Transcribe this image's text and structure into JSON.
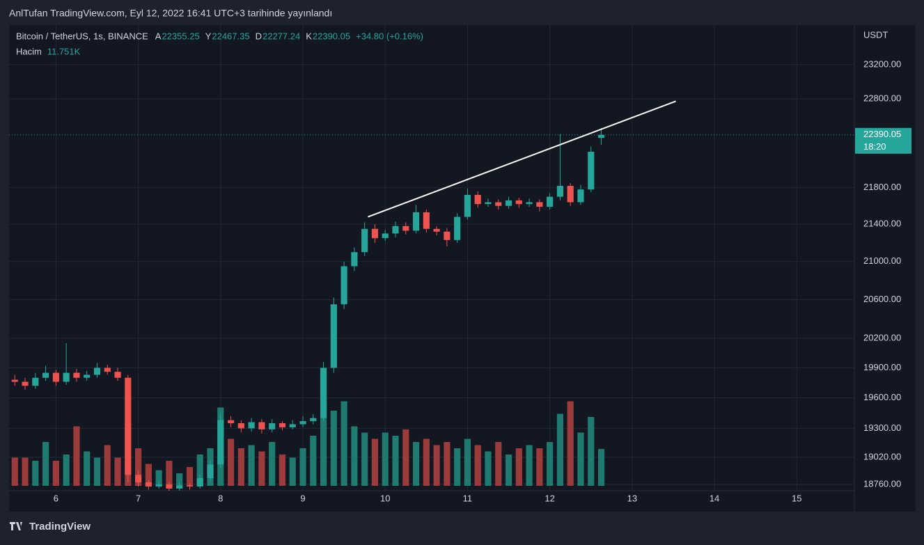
{
  "header": {
    "published": "AnlTufan TradingView.com, Eyl 12, 2022 16:41 UTC+3 tarihinde yayınlandı",
    "symbol": "Bitcoin / TetherUS, 1s, BINANCE",
    "open_label": "A",
    "high_label": "Y",
    "low_label": "D",
    "close_label": "K",
    "change": "+34.80 (+0.16%)",
    "volume_name": "Hacim",
    "countdown": "18:20"
  },
  "footer": {
    "logo": "TradingView"
  },
  "chart_data": {
    "type": "candlestick",
    "y_unit": "USDT",
    "log_scale": true,
    "grid": true,
    "up_color": "#26a69a",
    "down_color": "#ef5350",
    "volume_up_color": "#1f7a70",
    "volume_down_color": "#9c3b3b",
    "xlim": [
      5.43,
      15.7
    ],
    "xticks": [
      6,
      7,
      8,
      9,
      10,
      11,
      12,
      13,
      14,
      15
    ],
    "ylim": [
      18700,
      23670
    ],
    "yticks": [
      {
        "value": 18760,
        "label": "18760.00"
      },
      {
        "value": 19020,
        "label": "19020.00"
      },
      {
        "value": 19300,
        "label": "19300.00"
      },
      {
        "value": 19600,
        "label": "19600.00"
      },
      {
        "value": 19900,
        "label": "19900.00"
      },
      {
        "value": 20200,
        "label": "20200.00"
      },
      {
        "value": 20600,
        "label": "20600.00"
      },
      {
        "value": 21000,
        "label": "21000.00"
      },
      {
        "value": 21400,
        "label": "21400.00"
      },
      {
        "value": 21800,
        "label": "21800.00"
      },
      {
        "value": 22800,
        "label": "22800.00"
      },
      {
        "value": 23200,
        "label": "23200.00"
      }
    ],
    "volume_ylim": [
      0,
      40
    ],
    "x": [
      5.5,
      5.625,
      5.75,
      5.875,
      6,
      6.125,
      6.25,
      6.375,
      6.5,
      6.625,
      6.75,
      6.875,
      7,
      7.125,
      7.25,
      7.375,
      7.5,
      7.625,
      7.75,
      7.875,
      8,
      8.125,
      8.25,
      8.375,
      8.5,
      8.625,
      8.75,
      8.875,
      9,
      9.125,
      9.25,
      9.375,
      9.5,
      9.625,
      9.75,
      9.875,
      10,
      10.125,
      10.25,
      10.375,
      10.5,
      10.625,
      10.75,
      10.875,
      11,
      11.125,
      11.25,
      11.375,
      11.5,
      11.625,
      11.75,
      11.875,
      12,
      12.125,
      12.25,
      12.375,
      12.5,
      12.625
    ],
    "open": [
      19780,
      19760,
      19720,
      19800,
      19850,
      19760,
      19850,
      19800,
      19830,
      19900,
      19860,
      19800,
      18850,
      18780,
      18740,
      18760,
      18720,
      18750,
      18740,
      18820,
      18950,
      19380,
      19350,
      19300,
      19360,
      19290,
      19350,
      19310,
      19340,
      19370,
      19400,
      19900,
      20550,
      20950,
      21100,
      21350,
      21250,
      21300,
      21380,
      21330,
      21530,
      21350,
      21320,
      21230,
      21480,
      21720,
      21620,
      21640,
      21600,
      21660,
      21620,
      21640,
      21590,
      21700,
      21820,
      21640,
      21780,
      22355.25
    ],
    "high": [
      19830,
      19800,
      19850,
      19920,
      19880,
      20150,
      19890,
      19870,
      19950,
      19930,
      19900,
      19830,
      18890,
      18800,
      18790,
      18780,
      18780,
      18770,
      18850,
      18990,
      19450,
      19420,
      19380,
      19400,
      19390,
      19390,
      19370,
      19380,
      19420,
      19440,
      19960,
      20620,
      21000,
      21150,
      21420,
      21400,
      21340,
      21430,
      21420,
      21610,
      21560,
      21380,
      21360,
      21520,
      21790,
      21760,
      21680,
      21670,
      21700,
      21690,
      21680,
      21670,
      21740,
      22400,
      21850,
      21830,
      22260,
      22467.35
    ],
    "low": [
      19720,
      19680,
      19690,
      19770,
      19720,
      19730,
      19760,
      19770,
      19800,
      19830,
      19770,
      18780,
      18740,
      18710,
      18720,
      18700,
      18700,
      18710,
      18720,
      18790,
      18920,
      19310,
      19260,
      19270,
      19250,
      19260,
      19280,
      19290,
      19310,
      19340,
      19370,
      19850,
      20500,
      20900,
      21060,
      21200,
      21220,
      21260,
      21290,
      21300,
      21310,
      21280,
      21160,
      21200,
      21450,
      21580,
      21590,
      21560,
      21570,
      21580,
      21590,
      21540,
      21560,
      21660,
      21600,
      21610,
      21750,
      22277.24
    ],
    "close": [
      19760,
      19720,
      19800,
      19850,
      19760,
      19850,
      19800,
      19830,
      19900,
      19860,
      19800,
      18850,
      18780,
      18740,
      18760,
      18720,
      18750,
      18740,
      18820,
      18950,
      19380,
      19350,
      19300,
      19360,
      19290,
      19350,
      19310,
      19340,
      19370,
      19400,
      19900,
      20550,
      20950,
      21100,
      21350,
      21250,
      21300,
      21380,
      21330,
      21530,
      21350,
      21320,
      21230,
      21480,
      21720,
      21620,
      21640,
      21600,
      21660,
      21620,
      21640,
      21590,
      21700,
      21820,
      21640,
      21780,
      22200,
      22390.05
    ],
    "volume": [
      9,
      9,
      8,
      14,
      8,
      10,
      19,
      11,
      9,
      13,
      9,
      20,
      12,
      7,
      5,
      8,
      4,
      6,
      10,
      12,
      25,
      15,
      12,
      13,
      11,
      14,
      10,
      9,
      12,
      16,
      28,
      24,
      27,
      19,
      17,
      15,
      17,
      16,
      18,
      14,
      15,
      13,
      14,
      12,
      15,
      13,
      11,
      14,
      10,
      12,
      13,
      12,
      14,
      23,
      27,
      17,
      22,
      11.751
    ],
    "volume_label": "11.751K",
    "trendline": {
      "x": [
        9.79,
        13.53
      ],
      "y": [
        21480,
        22775
      ],
      "color": "#ffffff"
    }
  }
}
